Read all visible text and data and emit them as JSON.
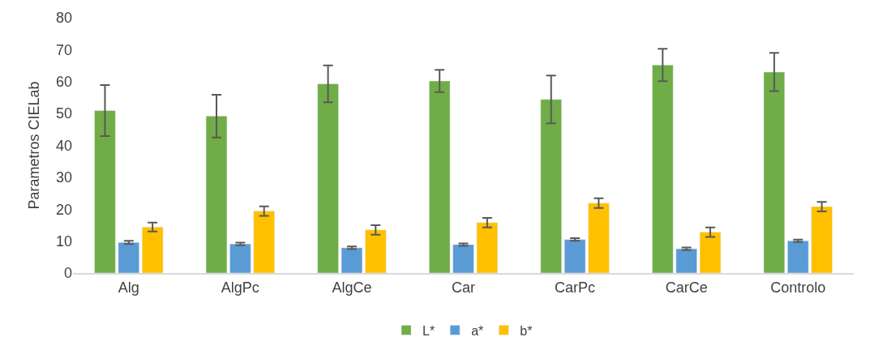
{
  "chart_data": {
    "type": "bar",
    "ylabel": "Parametros CIELab",
    "categories": [
      "Alg",
      "AlgPc",
      "AlgCe",
      "Car",
      "CarPc",
      "CarCe",
      "Controlo"
    ],
    "series": [
      {
        "name": "L*",
        "color": "#70ad47",
        "values": [
          50.9,
          49.2,
          59.3,
          60.2,
          54.4,
          65.2,
          63.0
        ],
        "errors": [
          8,
          6.7,
          5.8,
          3.5,
          7.5,
          5.1,
          6
        ]
      },
      {
        "name": "a*",
        "color": "#5b9bd5",
        "values": [
          9.6,
          9.1,
          7.9,
          8.9,
          10.5,
          7.6,
          10.1
        ],
        "errors": [
          0.5,
          0.4,
          0.4,
          0.4,
          0.4,
          0.4,
          0.4
        ]
      },
      {
        "name": "b*",
        "color": "#ffc000",
        "values": [
          14.4,
          19.4,
          13.5,
          15.8,
          21.9,
          12.8,
          20.8
        ],
        "errors": [
          1.4,
          1.5,
          1.5,
          1.5,
          1.5,
          1.5,
          1.5
        ]
      }
    ],
    "ylim": [
      0,
      80
    ],
    "yticks": [
      0,
      10,
      20,
      30,
      40,
      50,
      60,
      70,
      80
    ],
    "grid": false,
    "legend": "bottom"
  }
}
